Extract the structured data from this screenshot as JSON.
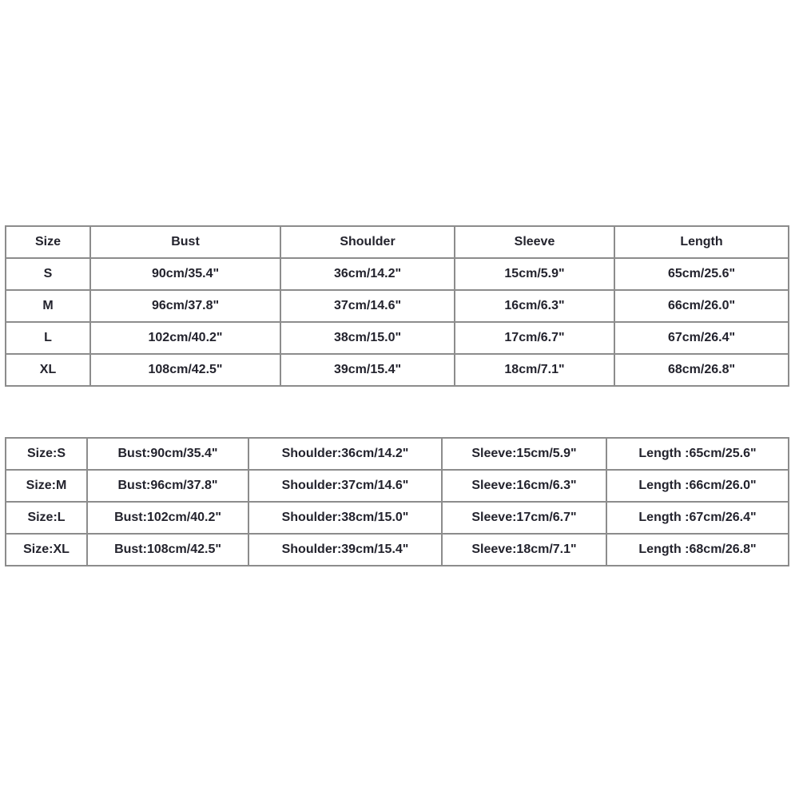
{
  "background": "#ffffff",
  "colors": {
    "table_border": "#8c8c8c",
    "table_text": "#23232d",
    "table_background": "#ffffff"
  },
  "chart_data": [
    {
      "type": "table",
      "name": "size-chart-columnar",
      "columns": [
        "Size",
        "Bust",
        "Shoulder",
        "Sleeve",
        "Length"
      ],
      "rows": [
        [
          "S",
          "90cm/35.4\"",
          "36cm/14.2\"",
          "15cm/5.9\"",
          "65cm/25.6\""
        ],
        [
          "M",
          "96cm/37.8\"",
          "37cm/14.6\"",
          "16cm/6.3\"",
          "66cm/26.0\""
        ],
        [
          "L",
          "102cm/40.2\"",
          "38cm/15.0\"",
          "17cm/6.7\"",
          "67cm/26.4\""
        ],
        [
          "XL",
          "108cm/42.5\"",
          "39cm/15.4\"",
          "18cm/7.1\"",
          "68cm/26.8\""
        ]
      ]
    },
    {
      "type": "table",
      "name": "size-chart-inline-labels",
      "columns": [],
      "rows": [
        [
          "Size:S",
          "Bust:90cm/35.4\"",
          "Shoulder:36cm/14.2\"",
          "Sleeve:15cm/5.9\"",
          "Length :65cm/25.6\""
        ],
        [
          "Size:M",
          "Bust:96cm/37.8\"",
          "Shoulder:37cm/14.6\"",
          "Sleeve:16cm/6.3\"",
          "Length :66cm/26.0\""
        ],
        [
          "Size:L",
          "Bust:102cm/40.2\"",
          "Shoulder:38cm/15.0\"",
          "Sleeve:17cm/6.7\"",
          "Length :67cm/26.4\""
        ],
        [
          "Size:XL",
          "Bust:108cm/42.5\"",
          "Shoulder:39cm/15.4\"",
          "Sleeve:18cm/7.1\"",
          "Length :68cm/26.8\""
        ]
      ]
    }
  ]
}
